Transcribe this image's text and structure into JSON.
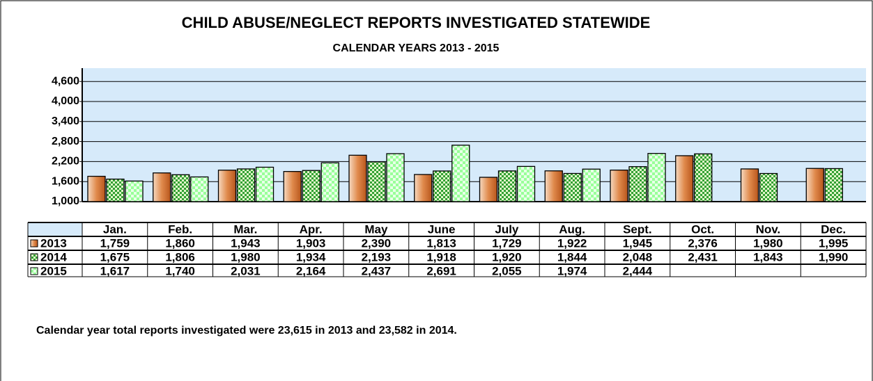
{
  "chart_data": {
    "type": "bar",
    "title": "CHILD ABUSE/NEGLECT REPORTS  INVESTIGATED STATEWIDE",
    "subtitle": "CALENDAR YEARS 2013 - 2015",
    "categories": [
      "Jan.",
      "Feb.",
      "Mar.",
      "Apr.",
      "May",
      "June",
      "July",
      "Aug.",
      "Sept.",
      "Oct.",
      "Nov.",
      "Dec."
    ],
    "series": [
      {
        "name": "2013",
        "color": "#c8682e",
        "values": [
          1759,
          1860,
          1943,
          1903,
          2390,
          1813,
          1729,
          1922,
          1945,
          2376,
          1980,
          1995
        ],
        "value_labels": [
          "1,759",
          "1,860",
          "1,943",
          "1,903",
          "2,390",
          "1,813",
          "1,729",
          "1,922",
          "1,945",
          "2,376",
          "1,980",
          "1,995"
        ]
      },
      {
        "name": "2014",
        "color": "#33a033",
        "values": [
          1675,
          1806,
          1980,
          1934,
          2193,
          1918,
          1920,
          1844,
          2048,
          2431,
          1843,
          1990
        ],
        "value_labels": [
          "1,675",
          "1,806",
          "1,980",
          "1,934",
          "2,193",
          "1,918",
          "1,920",
          "1,844",
          "2,048",
          "2,431",
          "1,843",
          "1,990"
        ]
      },
      {
        "name": "2015",
        "color": "#99ff99",
        "values": [
          1617,
          1740,
          2031,
          2164,
          2437,
          2691,
          2055,
          1974,
          2444,
          null,
          null,
          null
        ],
        "value_labels": [
          "1,617",
          "1,740",
          "2,031",
          "2,164",
          "2,437",
          "2,691",
          "2,055",
          "1,974",
          "2,444",
          null,
          null,
          null
        ]
      }
    ],
    "ylim": [
      1000,
      5000
    ],
    "yticks": [
      {
        "value": 1000,
        "label": "1,000"
      },
      {
        "value": 1600,
        "label": "1,600"
      },
      {
        "value": 2200,
        "label": "2,200"
      },
      {
        "value": 2800,
        "label": "2,800"
      },
      {
        "value": 3400,
        "label": "3,400"
      },
      {
        "value": 4000,
        "label": "4,000"
      },
      {
        "value": 4600,
        "label": "4,600"
      }
    ],
    "grid": true,
    "note": "Calendar year total reports investigated were 23,615 in 2013 and 23,582 in 2014."
  }
}
